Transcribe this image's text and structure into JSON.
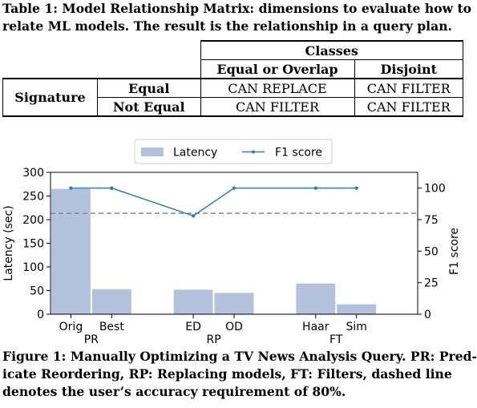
{
  "table_caption": [
    "Table 1: Model Relationship Matrix: dimensions to evaluate how to",
    "relate ML models. The result is the relationship in a query plan."
  ],
  "table": {
    "group_header": "Classes",
    "col_headers": [
      "Equal or Overlap",
      "Disjoint"
    ],
    "row_group_label": "Signature",
    "rows": [
      {
        "label": "Equal",
        "cells": [
          "CAN REPLACE",
          "CAN FILTER"
        ]
      },
      {
        "label": "Not Equal",
        "cells": [
          "CAN FILTER",
          "CAN FILTER"
        ]
      }
    ]
  },
  "chart_data": {
    "type": "bar",
    "legend": {
      "placement": "top-center",
      "entries": [
        "Latency",
        "F1 score"
      ]
    },
    "categories": [
      "Orig",
      "Best",
      "ED",
      "OD",
      "Haar",
      "Sim"
    ],
    "groups": [
      {
        "label": "PR",
        "categories": [
          "Orig",
          "Best"
        ]
      },
      {
        "label": "RP",
        "categories": [
          "ED",
          "OD"
        ]
      },
      {
        "label": "FT",
        "categories": [
          "Haar",
          "Sim"
        ]
      }
    ],
    "series": [
      {
        "name": "Latency",
        "type": "bar",
        "axis": "left",
        "color": "#b3c1dc",
        "values": [
          265,
          53,
          52,
          45,
          65,
          21
        ]
      },
      {
        "name": "F1 score",
        "type": "line",
        "axis": "right",
        "color": "#2f7fb5",
        "values": [
          100,
          100,
          78,
          100,
          100,
          100
        ]
      }
    ],
    "reference_line": {
      "axis": "right",
      "value": 80,
      "style": "dashed",
      "color": "#888888"
    },
    "ylabel": "Latency (sec)",
    "ylim": [
      0,
      300
    ],
    "yticks": [
      0,
      50,
      100,
      150,
      200,
      250,
      300
    ],
    "y2label": "F1 score",
    "y2lim": [
      0,
      112.5
    ],
    "y2ticks": [
      0,
      25,
      50,
      75,
      100
    ],
    "grid": false
  },
  "figure_caption": [
    "Figure 1: Manually Optimizing a TV News Analysis Query. PR: Pred-",
    "icate Reordering, RP: Replacing models, FT: Filters, dashed line",
    "denotes the user’s accuracy requirement of 80%."
  ]
}
